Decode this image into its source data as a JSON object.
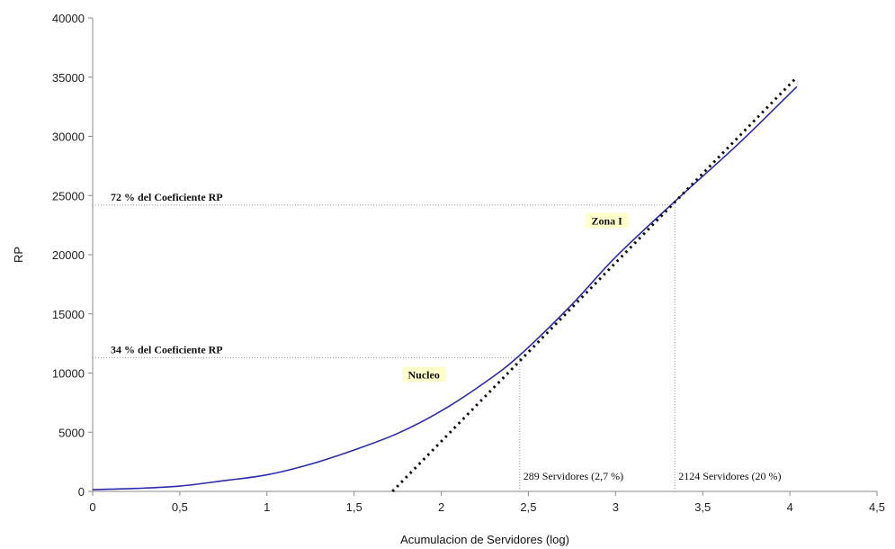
{
  "chart_data": {
    "type": "line",
    "title": "",
    "xlabel": "Acumulacion de Servidores (log)",
    "ylabel": "RP",
    "xlim": [
      0,
      4.5
    ],
    "ylim": [
      0,
      40000
    ],
    "x_ticks": [
      0,
      0.5,
      1,
      1.5,
      2,
      2.5,
      3,
      3.5,
      4,
      4.5
    ],
    "x_tick_labels": [
      "0",
      "0,5",
      "1",
      "1,5",
      "2",
      "2,5",
      "3",
      "3,5",
      "4",
      "4,5"
    ],
    "y_ticks": [
      0,
      5000,
      10000,
      15000,
      20000,
      25000,
      30000,
      35000,
      40000
    ],
    "y_tick_labels": [
      "0",
      "5000",
      "10000",
      "15000",
      "20000",
      "25000",
      "30000",
      "35000",
      "40000"
    ],
    "grid": false,
    "series": [
      {
        "style": "solid",
        "color": "#2b2bb0",
        "x": [
          0,
          0.25,
          0.5,
          0.75,
          1.0,
          1.25,
          1.5,
          1.75,
          2.0,
          2.25,
          2.45,
          2.75,
          3.0,
          3.34,
          3.7,
          4.04
        ],
        "y": [
          150,
          250,
          450,
          900,
          1400,
          2300,
          3500,
          4900,
          6800,
          9200,
          11500,
          15800,
          19800,
          24500,
          29300,
          34200
        ]
      },
      {
        "style": "dotted",
        "color": "#111111",
        "x": [
          1.72,
          4.04
        ],
        "y": [
          0,
          35000
        ]
      }
    ],
    "reference_lines": [
      {
        "label": "72 % del Coeficiente RP",
        "y": 24200,
        "x_end": 3.34
      },
      {
        "label": "34 % del Coeficiente RP",
        "y": 11300,
        "x_end": 2.45
      }
    ],
    "vertical_markers": [
      {
        "label": "289 Servidores (2,7 %)",
        "x": 2.45,
        "y_end": 11300
      },
      {
        "label": "2124 Servidores (20 %)",
        "x": 3.34,
        "y_end": 24200
      }
    ],
    "zone_labels": [
      {
        "text": "Zona I",
        "x": 2.95,
        "y": 22700
      },
      {
        "text": "Nucleo",
        "x": 1.9,
        "y": 9700
      }
    ],
    "highlight_color": "#ffffcc"
  }
}
